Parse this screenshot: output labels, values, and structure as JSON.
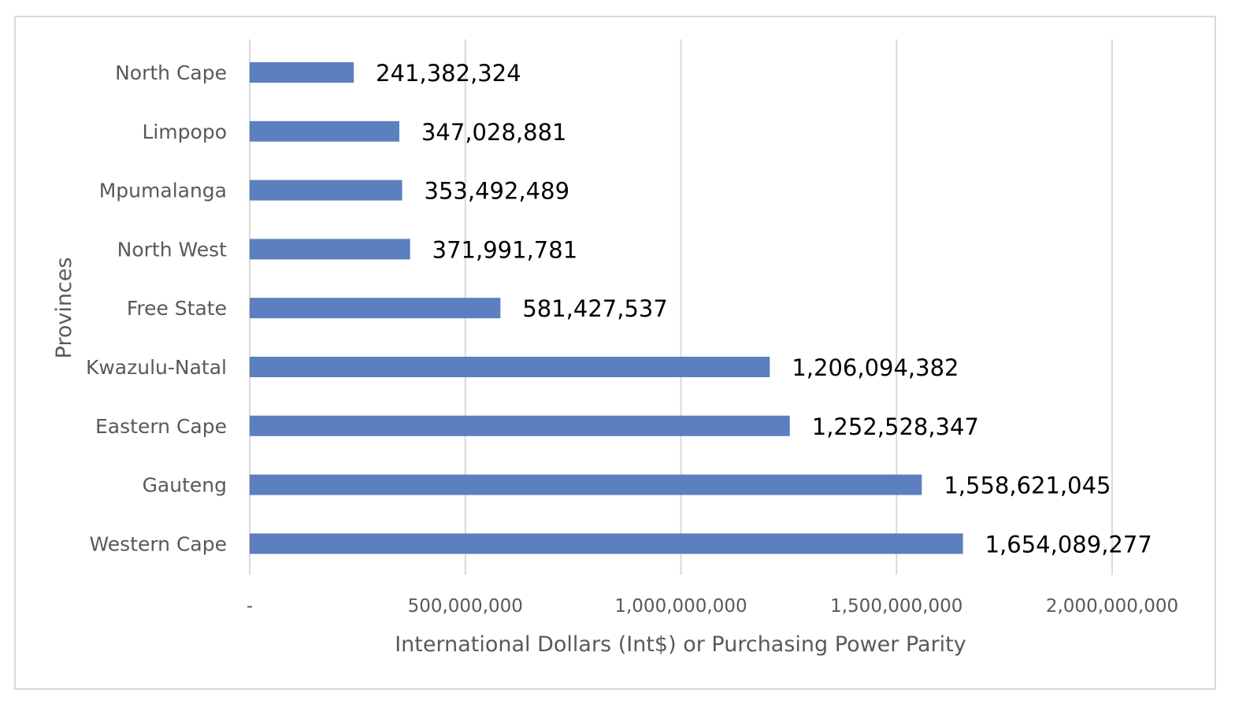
{
  "chart_data": {
    "type": "bar",
    "orientation": "horizontal",
    "categories": [
      "North Cape",
      "Limpopo",
      "Mpumalanga",
      "North West",
      "Free State",
      "Kwazulu-Natal",
      "Eastern Cape",
      "Gauteng",
      "Western Cape"
    ],
    "values": [
      241382324,
      347028881,
      353492489,
      371991781,
      581427537,
      1206094382,
      1252528347,
      1558621045,
      1654089277
    ],
    "data_labels": [
      "241,382,324",
      "347,028,881",
      "353,492,489",
      "371,991,781",
      "581,427,537",
      "1,206,094,382",
      "1,252,528,347",
      "1,558,621,045",
      "1,654,089,277"
    ],
    "x_ticks": [
      0,
      500000000,
      1000000000,
      1500000000,
      2000000000
    ],
    "x_tick_labels": [
      "-",
      "500,000,000",
      "1,000,000,000",
      "1,500,000,000",
      "2,000,000,000"
    ],
    "xlim": [
      0,
      2000000000
    ],
    "xlabel": "International Dollars (Int$) or Purchasing Power Parity",
    "ylabel": "Provinces",
    "grid": "vertical",
    "legend": "none",
    "bar_color": "#5b7fbf",
    "grid_color": "#d9d9d9"
  }
}
